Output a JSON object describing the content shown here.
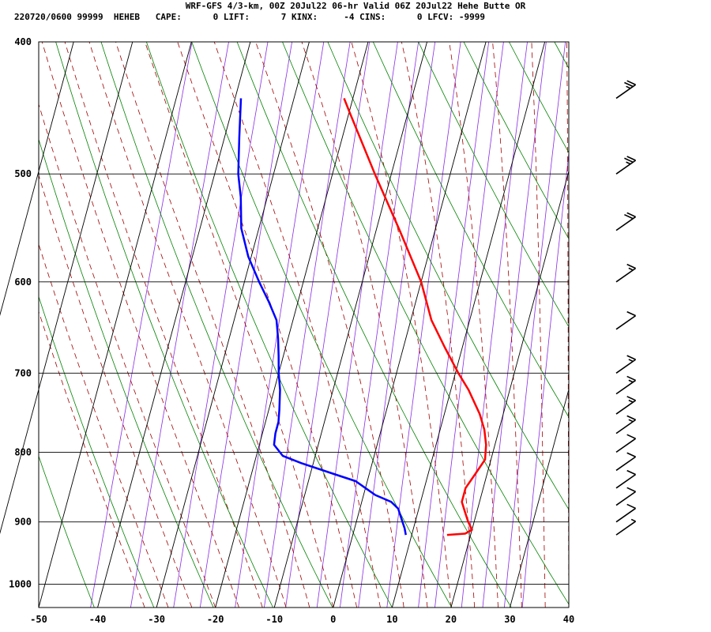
{
  "header": {
    "title": "WRF-GFS 4/3-km, 00Z 20Jul22 06-hr Valid 06Z 20Jul22 Hehe Butte OR",
    "info": "220720/0600 99999  HEHEB   CAPE:      0 LIFT:      7 KINX:     -4 CINS:      0 LFCV: -9999"
  },
  "chart_data": {
    "type": "line",
    "xlim": [
      -50,
      40
    ],
    "plim": [
      1040,
      400
    ],
    "x_ticks": [
      "-50",
      "-40",
      "-30",
      "-20",
      "-10",
      "0",
      "10",
      "20",
      "30",
      "40"
    ],
    "p_ticks": [
      "400",
      "500",
      "600",
      "700",
      "800",
      "900",
      "1000"
    ],
    "series": [
      {
        "color": "#ff0000",
        "points": [
          [
            920,
            16
          ],
          [
            918,
            19
          ],
          [
            912,
            20
          ],
          [
            900,
            19
          ],
          [
            885,
            18
          ],
          [
            870,
            17
          ],
          [
            850,
            17
          ],
          [
            830,
            18
          ],
          [
            810,
            19
          ],
          [
            790,
            18.5
          ],
          [
            770,
            17.5
          ],
          [
            750,
            16
          ],
          [
            720,
            13
          ],
          [
            700,
            10.5
          ],
          [
            670,
            7
          ],
          [
            640,
            3.5
          ],
          [
            600,
            0
          ],
          [
            550,
            -6
          ],
          [
            500,
            -12.8
          ],
          [
            450,
            -20
          ],
          [
            440,
            -21.5
          ]
        ]
      },
      {
        "color": "#0000ff",
        "points": [
          [
            920,
            9
          ],
          [
            910,
            8.5
          ],
          [
            895,
            7.5
          ],
          [
            880,
            6.5
          ],
          [
            870,
            5
          ],
          [
            860,
            2
          ],
          [
            850,
            0
          ],
          [
            840,
            -2
          ],
          [
            830,
            -6
          ],
          [
            815,
            -12
          ],
          [
            805,
            -15.5
          ],
          [
            790,
            -17.5
          ],
          [
            775,
            -17.8
          ],
          [
            760,
            -17.8
          ],
          [
            745,
            -18.2
          ],
          [
            720,
            -19
          ],
          [
            700,
            -20
          ],
          [
            680,
            -20.8
          ],
          [
            660,
            -21.7
          ],
          [
            640,
            -22.8
          ],
          [
            620,
            -25
          ],
          [
            600,
            -27.5
          ],
          [
            575,
            -30.5
          ],
          [
            548,
            -33
          ],
          [
            520,
            -34.5
          ],
          [
            500,
            -36
          ],
          [
            470,
            -37.5
          ],
          [
            440,
            -39
          ]
        ]
      }
    ],
    "wind_barbs": [
      {
        "p": 440,
        "speed": 25
      },
      {
        "p": 500,
        "speed": 25
      },
      {
        "p": 550,
        "speed": 20
      },
      {
        "p": 600,
        "speed": 15
      },
      {
        "p": 650,
        "speed": 10
      },
      {
        "p": 700,
        "speed": 15
      },
      {
        "p": 725,
        "speed": 15
      },
      {
        "p": 750,
        "speed": 15
      },
      {
        "p": 775,
        "speed": 15
      },
      {
        "p": 800,
        "speed": 10
      },
      {
        "p": 825,
        "speed": 10
      },
      {
        "p": 850,
        "speed": 10
      },
      {
        "p": 875,
        "speed": 10
      },
      {
        "p": 900,
        "speed": 10
      },
      {
        "p": 920,
        "speed": 5
      }
    ],
    "colors": {
      "isotherm": "#000000",
      "dry_adiabat": "#008000",
      "moist_adiabat": "#a00000",
      "mixing_ratio": "#8a2be2",
      "temperature": "#ff0000",
      "dewpoint": "#0000ff"
    },
    "grid": true
  }
}
